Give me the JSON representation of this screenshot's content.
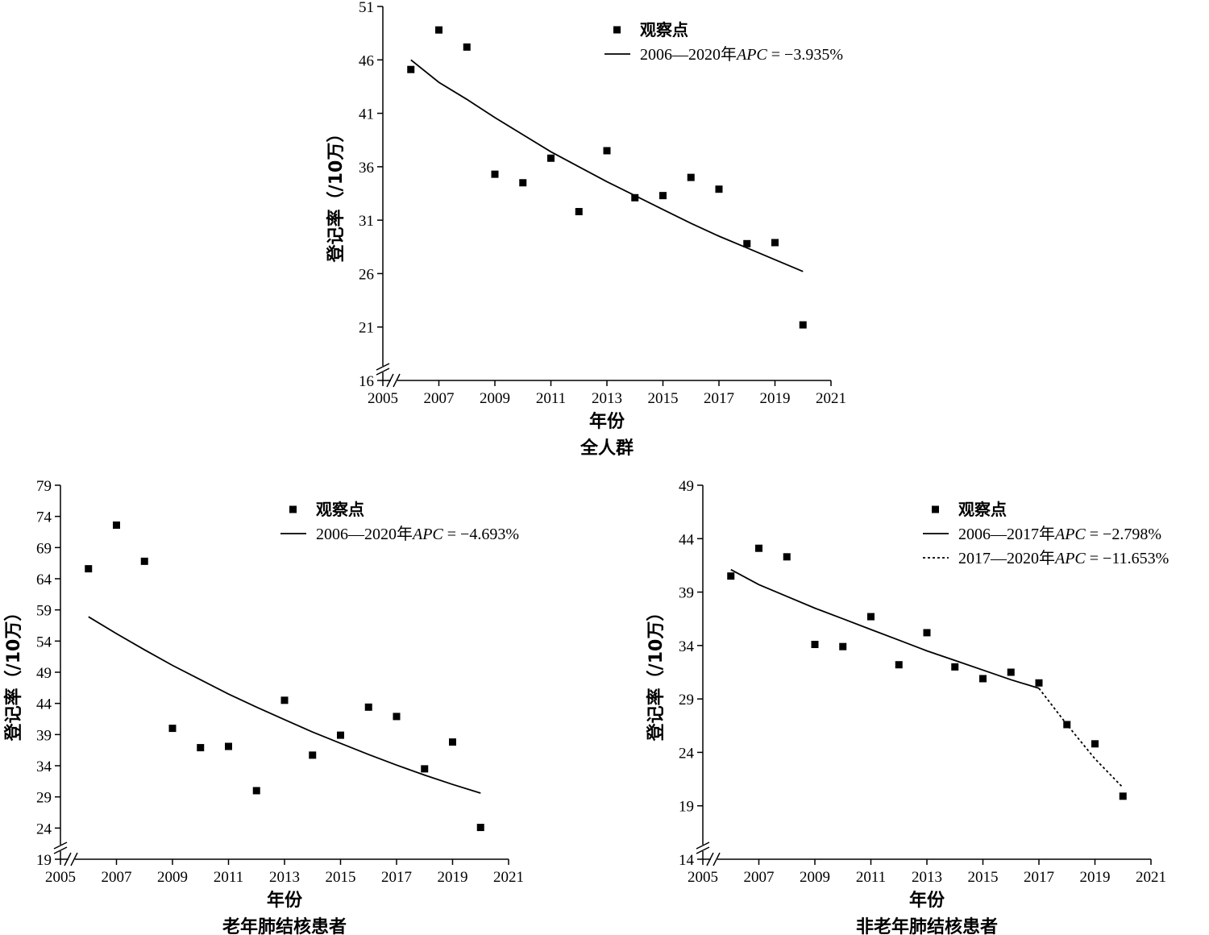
{
  "chart_data": [
    {
      "type": "scatter",
      "title": "全人群",
      "xlabel": "年份",
      "ylabel": "登记率（/10万）",
      "xlim": [
        2005,
        2021
      ],
      "ylim": [
        16,
        51
      ],
      "xticks": [
        2005,
        2007,
        2009,
        2011,
        2013,
        2015,
        2017,
        2019,
        2021
      ],
      "yticks": [
        16,
        21,
        26,
        31,
        36,
        41,
        46,
        51
      ],
      "axis_break": true,
      "grid": false,
      "legend_position": "top-right",
      "observed": {
        "name": "观察点",
        "x": [
          2006,
          2007,
          2008,
          2009,
          2010,
          2011,
          2012,
          2013,
          2014,
          2015,
          2016,
          2017,
          2018,
          2019,
          2020
        ],
        "y": [
          45.1,
          48.8,
          47.2,
          35.3,
          34.5,
          36.8,
          31.8,
          37.5,
          33.1,
          33.3,
          35.0,
          33.9,
          28.8,
          28.9,
          21.2
        ]
      },
      "fits": [
        {
          "label": "2006—2020年",
          "apc_label": "APC",
          "apc_value": " = −3.935%",
          "style": "solid",
          "x": [
            2006,
            2007,
            2008,
            2009,
            2010,
            2011,
            2012,
            2013,
            2014,
            2015,
            2016,
            2017,
            2018,
            2019,
            2020
          ],
          "y": [
            46.0,
            43.9,
            42.3,
            40.6,
            39.0,
            37.4,
            36.0,
            34.6,
            33.3,
            32.0,
            30.7,
            29.5,
            28.4,
            27.3,
            26.2
          ]
        }
      ]
    },
    {
      "type": "scatter",
      "title": "老年肺结核患者",
      "xlabel": "年份",
      "ylabel": "登记率（/10万）",
      "xlim": [
        2005,
        2021
      ],
      "ylim": [
        19,
        79
      ],
      "xticks": [
        2005,
        2007,
        2009,
        2011,
        2013,
        2015,
        2017,
        2019,
        2021
      ],
      "yticks": [
        19,
        24,
        29,
        34,
        39,
        44,
        49,
        54,
        59,
        64,
        69,
        74,
        79
      ],
      "axis_break": true,
      "grid": false,
      "legend_position": "top-right",
      "observed": {
        "name": "观察点",
        "x": [
          2006,
          2007,
          2008,
          2009,
          2010,
          2011,
          2012,
          2013,
          2014,
          2015,
          2016,
          2017,
          2018,
          2019,
          2020
        ],
        "y": [
          65.6,
          72.6,
          66.8,
          40.0,
          36.9,
          37.1,
          30.0,
          44.5,
          35.7,
          38.9,
          43.4,
          41.9,
          33.5,
          37.8,
          24.1
        ]
      },
      "fits": [
        {
          "label": "2006—2020年",
          "apc_label": "APC",
          "apc_value": " = −4.693%",
          "style": "solid",
          "x": [
            2006,
            2007,
            2008,
            2009,
            2010,
            2011,
            2012,
            2013,
            2014,
            2015,
            2016,
            2017,
            2018,
            2019,
            2020
          ],
          "y": [
            57.9,
            55.2,
            52.6,
            50.1,
            47.8,
            45.5,
            43.4,
            41.4,
            39.4,
            37.6,
            35.8,
            34.1,
            32.5,
            31.0,
            29.6
          ]
        }
      ]
    },
    {
      "type": "scatter",
      "title": "非老年肺结核患者",
      "xlabel": "年份",
      "ylabel": "登记率（/10万）",
      "xlim": [
        2005,
        2021
      ],
      "ylim": [
        14,
        49
      ],
      "xticks": [
        2005,
        2007,
        2009,
        2011,
        2013,
        2015,
        2017,
        2019,
        2021
      ],
      "yticks": [
        14,
        19,
        24,
        29,
        34,
        39,
        44,
        49
      ],
      "axis_break": true,
      "grid": false,
      "legend_position": "top-right",
      "observed": {
        "name": "观察点",
        "x": [
          2006,
          2007,
          2008,
          2009,
          2010,
          2011,
          2012,
          2013,
          2014,
          2015,
          2016,
          2017,
          2018,
          2019,
          2020
        ],
        "y": [
          40.5,
          43.1,
          42.3,
          34.1,
          33.9,
          36.7,
          32.2,
          35.2,
          32.0,
          30.9,
          31.5,
          30.5,
          26.6,
          24.8,
          19.9
        ]
      },
      "fits": [
        {
          "label": "2006—2017年",
          "apc_label": "APC",
          "apc_value": " = −2.798%",
          "style": "solid",
          "x": [
            2006,
            2007,
            2008,
            2009,
            2010,
            2011,
            2012,
            2013,
            2014,
            2015,
            2016,
            2017
          ],
          "y": [
            41.1,
            39.7,
            38.6,
            37.5,
            36.5,
            35.5,
            34.5,
            33.5,
            32.6,
            31.7,
            30.8,
            30.0
          ]
        },
        {
          "label": "2017—2020年",
          "apc_label": "APC",
          "apc_value": " = −11.653%",
          "style": "dashed",
          "x": [
            2017,
            2018,
            2019,
            2020
          ],
          "y": [
            30.0,
            26.6,
            23.4,
            20.7
          ]
        }
      ]
    }
  ]
}
